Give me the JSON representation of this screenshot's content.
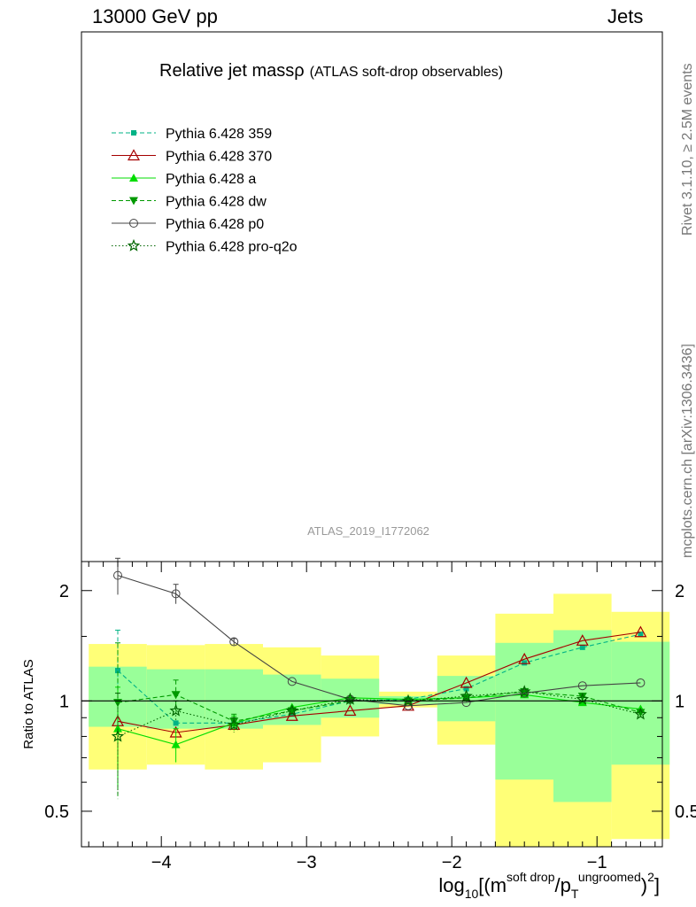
{
  "header": {
    "left": "13000 GeV pp",
    "right": "Jets"
  },
  "side_text": {
    "top": "Rivet 3.1.10, ≥ 2.5M events",
    "bottom": "mcplots.cern.ch [arXiv:1306.3436]"
  },
  "chart_data": {
    "type": "line",
    "title": "Relative jet massρ",
    "subtitle": "(ATLAS soft-drop observables)",
    "watermark": "ATLAS_2019_I1772062",
    "ylabel": "Ratio to ATLAS",
    "xlabel": {
      "main": "log",
      "sub": "10",
      "open": "[(m",
      "sup1": "soft drop",
      "mid": "/p",
      "sub2": "T",
      "sup2": "ungroomed",
      "close": ")",
      "sup3": "2",
      "end": "]"
    },
    "x_ticks": [
      "−4",
      "−3",
      "−2",
      "−1"
    ],
    "x_tick_values": [
      -4,
      -3,
      -2,
      -1
    ],
    "y_ticks": [
      "0.5",
      "1",
      "2"
    ],
    "y_tick_values": [
      0.5,
      1,
      2
    ],
    "xlim": [
      -4.55,
      -0.55
    ],
    "ylim": [
      0.4,
      2.4
    ],
    "y_scale": "log",
    "reference_line": 1,
    "bands": {
      "x_edges": [
        -4.5,
        -4.1,
        -3.7,
        -3.3,
        -2.9,
        -2.5,
        -2.1,
        -1.7,
        -1.3,
        -0.9,
        -0.5
      ],
      "yellow_lo": [
        0.65,
        0.67,
        0.65,
        0.68,
        0.8,
        0.96,
        0.76,
        0.38,
        0.38,
        0.42,
        0.38
      ],
      "yellow_hi": [
        1.43,
        1.42,
        1.43,
        1.4,
        1.33,
        1.06,
        1.33,
        1.73,
        1.96,
        1.75,
        1.73
      ],
      "green_lo": [
        0.85,
        0.84,
        0.84,
        0.86,
        0.9,
        0.98,
        0.88,
        0.61,
        0.53,
        0.67,
        0.61
      ],
      "green_hi": [
        1.24,
        1.22,
        1.22,
        1.18,
        1.15,
        1.03,
        1.17,
        1.44,
        1.56,
        1.45,
        1.43
      ]
    },
    "x": [
      -4.3,
      -3.9,
      -3.5,
      -3.1,
      -2.7,
      -2.3,
      -1.9,
      -1.5,
      -1.1,
      -0.7
    ],
    "legend_position": "top-left",
    "series": [
      {
        "name": "Pythia 6.428 359",
        "color": "#00b386",
        "marker": "square",
        "line": "dashed",
        "values": [
          1.21,
          0.87,
          0.87,
          0.92,
          1.0,
          1.01,
          1.08,
          1.27,
          1.4,
          1.52
        ],
        "err": [
          0.35,
          0.0,
          0.0,
          0.0,
          0.0,
          0.0,
          0.0,
          0.0,
          0.0,
          0.0
        ]
      },
      {
        "name": "Pythia 6.428 370",
        "color": "#a50000",
        "marker": "triangle-open",
        "line": "solid",
        "values": [
          0.88,
          0.82,
          0.86,
          0.91,
          0.94,
          0.97,
          1.12,
          1.3,
          1.46,
          1.54
        ],
        "err": [
          0,
          0,
          0,
          0,
          0,
          0,
          0,
          0,
          0,
          0
        ]
      },
      {
        "name": "Pythia 6.428 a",
        "color": "#00dd00",
        "marker": "triangle",
        "line": "solid",
        "values": [
          0.84,
          0.76,
          0.87,
          0.96,
          1.02,
          1.01,
          1.02,
          1.04,
          0.99,
          0.95
        ],
        "err": [
          0.25,
          0.08,
          0.04,
          0,
          0,
          0,
          0,
          0,
          0,
          0
        ]
      },
      {
        "name": "Pythia 6.428 dw",
        "color": "#009900",
        "marker": "triangle-down",
        "line": "dashed",
        "values": [
          0.99,
          1.04,
          0.88,
          0.94,
          1.0,
          1.0,
          1.02,
          1.06,
          1.03,
          0.93
        ],
        "err": [
          0.45,
          0.1,
          0.04,
          0,
          0,
          0,
          0,
          0,
          0,
          0
        ]
      },
      {
        "name": "Pythia 6.428 p0",
        "color": "#444444",
        "marker": "circle-open",
        "line": "solid",
        "values": [
          2.2,
          1.96,
          1.45,
          1.13,
          1.01,
          0.97,
          0.99,
          1.05,
          1.1,
          1.12
        ],
        "err": [
          0.25,
          0.12,
          0.03,
          0,
          0,
          0,
          0,
          0,
          0,
          0
        ]
      },
      {
        "name": "Pythia 6.428 pro-q2o",
        "color": "#006600",
        "marker": "star",
        "line": "dotted",
        "values": [
          0.8,
          0.94,
          0.86,
          0.94,
          1.01,
          1.0,
          1.03,
          1.06,
          1.01,
          0.92
        ],
        "err": [
          0.25,
          0.06,
          0.04,
          0,
          0,
          0,
          0,
          0,
          0,
          0
        ]
      }
    ]
  }
}
